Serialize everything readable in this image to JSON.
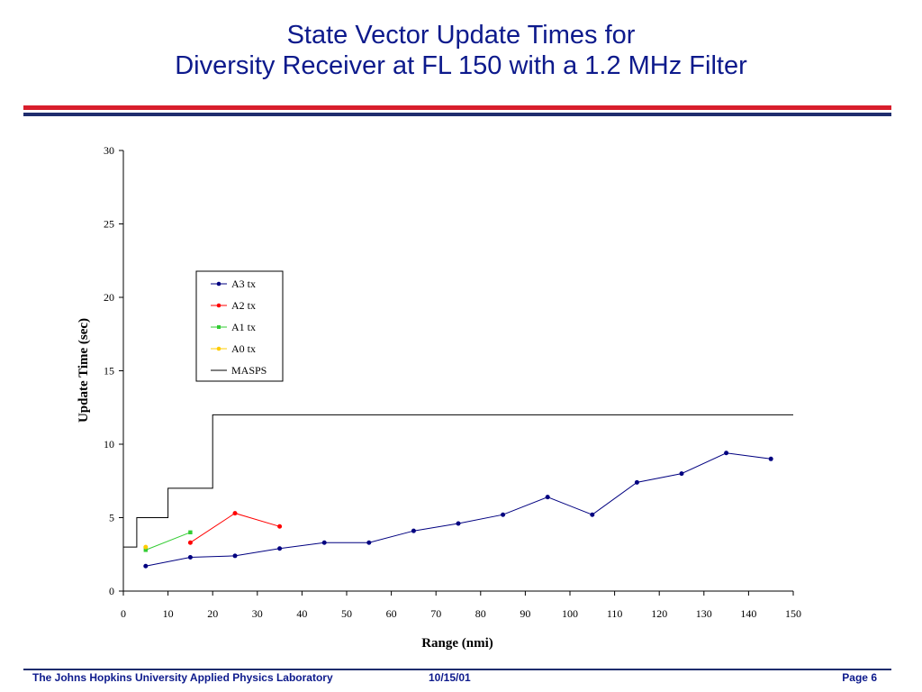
{
  "slide": {
    "title_line1": "State Vector Update Times for",
    "title_line2": "Diversity Receiver at FL 150 with a 1.2 MHz Filter",
    "accent_red": "#d81e2c",
    "accent_blue": "#1f2d6e"
  },
  "footer": {
    "org": "The Johns Hopkins University Applied Physics Laboratory",
    "date": "10/15/01",
    "page": "Page 6"
  },
  "chart_data": {
    "type": "line",
    "xlabel": "Range (nmi)",
    "ylabel": "Update Time (sec)",
    "xlim": [
      0,
      150
    ],
    "ylim": [
      0,
      30
    ],
    "xticks": [
      0,
      10,
      20,
      30,
      40,
      50,
      60,
      70,
      80,
      90,
      100,
      110,
      120,
      130,
      140,
      150
    ],
    "yticks": [
      0,
      5,
      10,
      15,
      20,
      25,
      30
    ],
    "grid": false,
    "legend_position": "top-left",
    "series": [
      {
        "name": "A3 tx",
        "color": "#000080",
        "marker": "circle",
        "x": [
          5,
          15,
          25,
          35,
          45,
          55,
          65,
          75,
          85,
          95,
          105,
          115,
          125,
          135,
          145
        ],
        "y": [
          1.7,
          2.3,
          2.4,
          2.9,
          3.3,
          3.3,
          4.1,
          4.6,
          5.2,
          6.4,
          5.2,
          7.4,
          8.0,
          9.4,
          9.0
        ]
      },
      {
        "name": "A2 tx",
        "color": "#ff0000",
        "marker": "circle",
        "x": [
          15,
          25,
          35
        ],
        "y": [
          3.3,
          5.3,
          4.4
        ]
      },
      {
        "name": "A1 tx",
        "color": "#33cc33",
        "marker": "square",
        "x": [
          5,
          15
        ],
        "y": [
          2.8,
          4.0
        ]
      },
      {
        "name": "A0 tx",
        "color": "#ffcc00",
        "marker": "circle",
        "x": [
          5
        ],
        "y": [
          3.0
        ]
      },
      {
        "name": "MASPS",
        "color": "#000000",
        "marker": "none",
        "step": true,
        "x": [
          0,
          3,
          3,
          10,
          10,
          20,
          20,
          150
        ],
        "y": [
          3,
          3,
          5,
          5,
          7,
          7,
          12,
          12
        ]
      }
    ]
  }
}
